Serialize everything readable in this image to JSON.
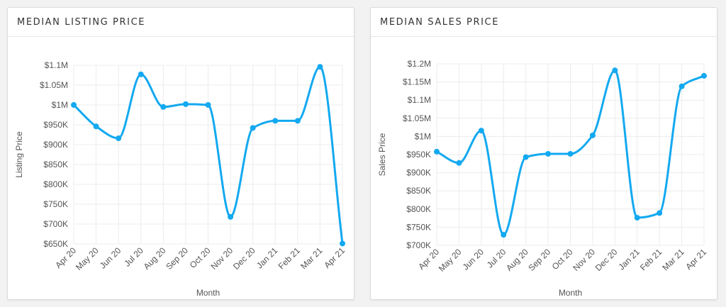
{
  "colors": {
    "series": "#13a9f0",
    "grid": "#ececec",
    "text": "#555555"
  },
  "chart_data": [
    {
      "type": "line",
      "title": "MEDIAN LISTING PRICE",
      "xlabel": "Month",
      "ylabel": "Listing Price",
      "categories": [
        "Apr 20",
        "May 20",
        "Jun 20",
        "Jul 20",
        "Aug 20",
        "Sep 20",
        "Oct 20",
        "Nov 20",
        "Dec 20",
        "Jan 21",
        "Feb 21",
        "Mar 21",
        "Apr 21"
      ],
      "y_ticks": [
        650000,
        700000,
        750000,
        800000,
        850000,
        900000,
        950000,
        1000000,
        1050000,
        1100000
      ],
      "y_tick_labels": [
        "$650K",
        "$700K",
        "$750K",
        "$800K",
        "$850K",
        "$900K",
        "$950K",
        "$1M",
        "$1.05M",
        "$1.1M"
      ],
      "ylim": [
        650000,
        1100000
      ],
      "grid": true,
      "series": [
        {
          "values": [
            1000000,
            946000,
            916000,
            1077000,
            995000,
            1002000,
            1000000,
            718000,
            942000,
            960000,
            960000,
            1096000,
            651000
          ]
        }
      ]
    },
    {
      "type": "line",
      "title": "MEDIAN SALES PRICE",
      "xlabel": "Month",
      "ylabel": "Sales Price",
      "categories": [
        "Apr 20",
        "May 20",
        "Jun 20",
        "Jul 20",
        "Aug 20",
        "Sep 20",
        "Oct 20",
        "Nov 20",
        "Dec 20",
        "Jan 21",
        "Feb 21",
        "Mar 21",
        "Apr 21"
      ],
      "y_ticks": [
        700000,
        750000,
        800000,
        850000,
        900000,
        950000,
        1000000,
        1050000,
        1100000,
        1150000,
        1200000
      ],
      "y_tick_labels": [
        "$700K",
        "$750K",
        "$800K",
        "$850K",
        "$900K",
        "$950K",
        "$1M",
        "$1.05M",
        "$1.1M",
        "$1.15M",
        "$1.2M"
      ],
      "ylim": [
        700000,
        1200000
      ],
      "grid": true,
      "series": [
        {
          "values": [
            958000,
            927000,
            1016000,
            729000,
            943000,
            952000,
            952000,
            1003000,
            1182000,
            776000,
            789000,
            1138000,
            1167000
          ]
        }
      ]
    }
  ]
}
